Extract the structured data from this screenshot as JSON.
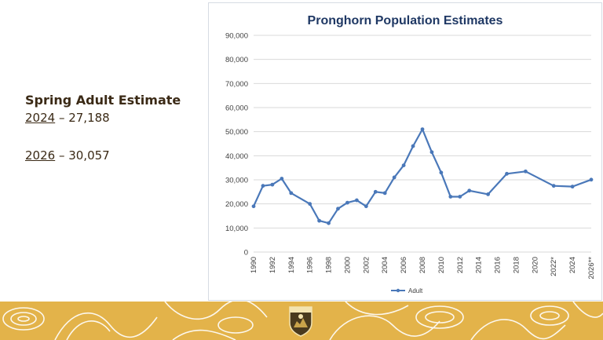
{
  "estimates": {
    "heading": "Spring Adult Estimate",
    "items": [
      {
        "year": "2024",
        "value": " – 27,188"
      },
      {
        "year": "2026",
        "value": " – 30,057"
      }
    ]
  },
  "colors": {
    "series": "#4a78b9",
    "title": "#1f3864",
    "band": "#e3b34a",
    "band_lines": "#ffffff",
    "text": "#3b2a16"
  },
  "chart_data": {
    "type": "line",
    "title": "Pronghorn Population Estimates",
    "xlabel": "",
    "ylabel": "",
    "ylim": [
      0,
      90000
    ],
    "yticks": [
      "0",
      "10,000",
      "20,000",
      "30,000",
      "40,000",
      "50,000",
      "60,000",
      "70,000",
      "80,000",
      "90,000"
    ],
    "xticks": [
      "1990",
      "1992",
      "1994",
      "1996",
      "1998",
      "2000",
      "2002",
      "2004",
      "2006",
      "2008",
      "2010",
      "2012",
      "2014",
      "2016",
      "2018",
      "2020",
      "2022*",
      "2024",
      "2026**"
    ],
    "grid": true,
    "legend": "bottom",
    "series": [
      {
        "name": "Adult",
        "x": [
          1990,
          1991,
          1992,
          1993,
          1994,
          1996,
          1997,
          1998,
          1999,
          2000,
          2001,
          2002,
          2003,
          2004,
          2005,
          2006,
          2007,
          2008,
          2009,
          2010,
          2011,
          2012,
          2013,
          2015,
          2017,
          2019,
          2022,
          2024,
          2026
        ],
        "values": [
          19000,
          27500,
          28000,
          30500,
          24500,
          20000,
          13000,
          12000,
          18000,
          20500,
          21500,
          19000,
          25000,
          24500,
          31000,
          36000,
          44000,
          51000,
          41500,
          33000,
          23000,
          23000,
          25500,
          24000,
          32500,
          33500,
          27500,
          27188,
          30057
        ]
      }
    ]
  }
}
